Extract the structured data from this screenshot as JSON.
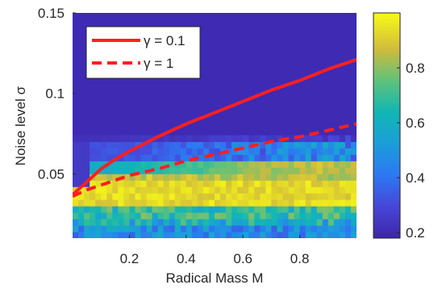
{
  "chart_data": {
    "type": "heatmap",
    "xlabel": "Radical Mass M",
    "ylabel": "Noise level σ",
    "xlim": [
      0,
      1
    ],
    "ylim": [
      0.01,
      0.15
    ],
    "x_ticks": [
      {
        "value": 0.2,
        "label": "0.2"
      },
      {
        "value": 0.4,
        "label": "0.4"
      },
      {
        "value": 0.6,
        "label": "0.6"
      },
      {
        "value": 0.8,
        "label": "0.8"
      }
    ],
    "y_ticks": [
      {
        "value": 0.05,
        "label": "0.05"
      },
      {
        "value": 0.1,
        "label": "0.1"
      },
      {
        "value": 0.15,
        "label": "0.15"
      }
    ],
    "colorbar": {
      "range": [
        0.18,
        1.0
      ],
      "ticks": [
        {
          "value": 0.2,
          "label": "0.2"
        },
        {
          "value": 0.4,
          "label": "0.4"
        },
        {
          "value": 0.6,
          "label": "0.6"
        },
        {
          "value": 0.8,
          "label": "0.8"
        }
      ],
      "colormap": "parula"
    },
    "legend": {
      "placement": "top-left",
      "entries": [
        {
          "label": "γ = 0.1",
          "style": "solid"
        },
        {
          "label": "γ = 1",
          "style": "dashed"
        }
      ]
    },
    "series": [
      {
        "label": "γ = 0.1",
        "style": "solid",
        "color": "#ff1f1f",
        "x": [
          0.0,
          0.05,
          0.1,
          0.15,
          0.2,
          0.3,
          0.4,
          0.5,
          0.6,
          0.7,
          0.8,
          0.9,
          1.0
        ],
        "y": [
          0.037,
          0.045,
          0.053,
          0.059,
          0.064,
          0.073,
          0.081,
          0.088,
          0.095,
          0.102,
          0.108,
          0.115,
          0.121
        ]
      },
      {
        "label": "γ = 1",
        "style": "dashed",
        "color": "#ff1f1f",
        "x": [
          0.0,
          0.05,
          0.1,
          0.15,
          0.2,
          0.3,
          0.4,
          0.5,
          0.6,
          0.7,
          0.8,
          0.9,
          1.0
        ],
        "y": [
          0.036,
          0.04,
          0.043,
          0.046,
          0.049,
          0.053,
          0.058,
          0.062,
          0.066,
          0.07,
          0.073,
          0.077,
          0.081
        ]
      }
    ],
    "heatmap_description_levels": {
      "background_value": 0.2,
      "bright_band_center_sigma": 0.036,
      "transition_band_center_sigma": 0.057
    }
  }
}
